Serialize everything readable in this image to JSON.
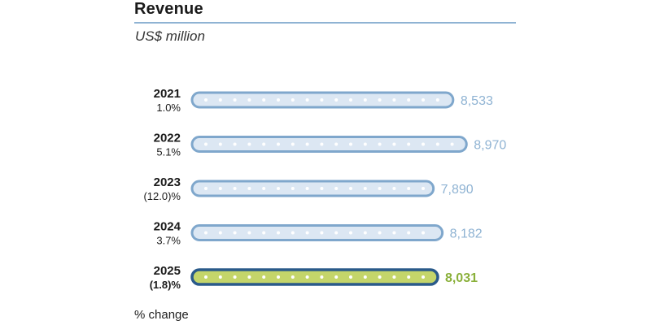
{
  "title": "Revenue",
  "subtitle": "US$ million",
  "footnote": "% change",
  "colors": {
    "bar_fill": "#dce7f3",
    "bar_outline": "#7fa7cc",
    "bar_dots": "#ffffff",
    "value_text": "#8fb3d3",
    "highlight_fill": "#c4d56a",
    "highlight_outline": "#2a5a8a",
    "highlight_text": "#8ab03a"
  },
  "chart_data": {
    "type": "bar",
    "orientation": "horizontal",
    "title": "Revenue",
    "subtitle": "US$ million",
    "categories": [
      "2021",
      "2022",
      "2023",
      "2024",
      "2025"
    ],
    "values": [
      8533,
      8970,
      7890,
      8182,
      8031
    ],
    "value_labels": [
      "8,533",
      "8,970",
      "7,890",
      "8,182",
      "8,031"
    ],
    "pct_change": [
      "1.0%",
      "5.1%",
      "(12.0)%",
      "3.7%",
      "(1.8)%"
    ],
    "highlight_index": 4,
    "footnote": "% change"
  }
}
